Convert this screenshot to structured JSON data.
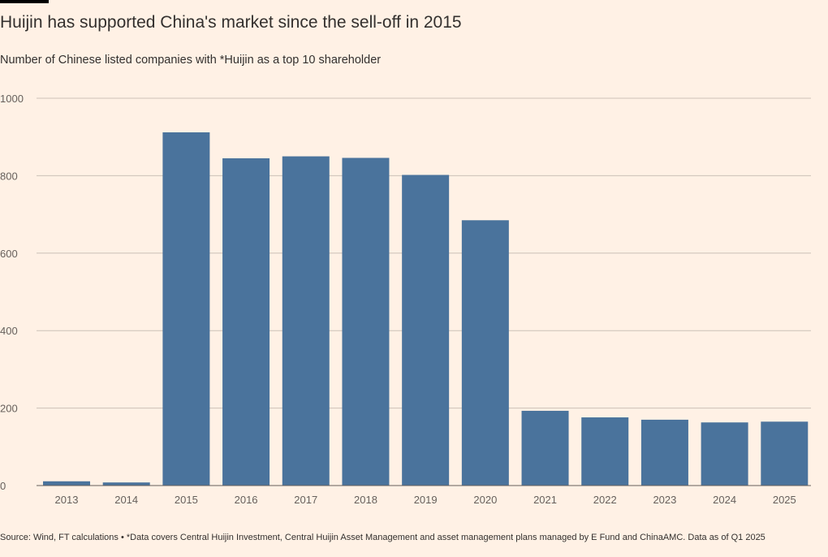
{
  "header": {
    "title": "Huijin has supported China's market since the sell-off in 2015",
    "subtitle": "Number of Chinese listed companies with *Huijin as a top 10 shareholder"
  },
  "footer": {
    "source": "Source: Wind, FT calculations • *Data covers Central Huijin Investment, Central Huijin Asset Management and asset management plans managed by E Fund and ChinaAMC. Data as of Q1 2025"
  },
  "colors": {
    "bar": "#4a739c",
    "grid": "#ccc1b7",
    "axis": "#66605c",
    "background": "#fff1e5"
  },
  "chart_data": {
    "type": "bar",
    "title": "Huijin has supported China's market since the sell-off in 2015",
    "subtitle": "Number of Chinese listed companies with *Huijin as a top 10 shareholder",
    "xlabel": "",
    "ylabel": "",
    "categories": [
      "2013",
      "2014",
      "2015",
      "2016",
      "2017",
      "2018",
      "2019",
      "2020",
      "2021",
      "2022",
      "2023",
      "2024",
      "2025"
    ],
    "values": [
      11,
      8,
      912,
      845,
      850,
      846,
      802,
      685,
      193,
      176,
      170,
      163,
      165
    ],
    "ylim": [
      0,
      1000
    ],
    "yticks": [
      0,
      200,
      400,
      600,
      800,
      1000
    ],
    "grid": true,
    "legend": "none"
  }
}
